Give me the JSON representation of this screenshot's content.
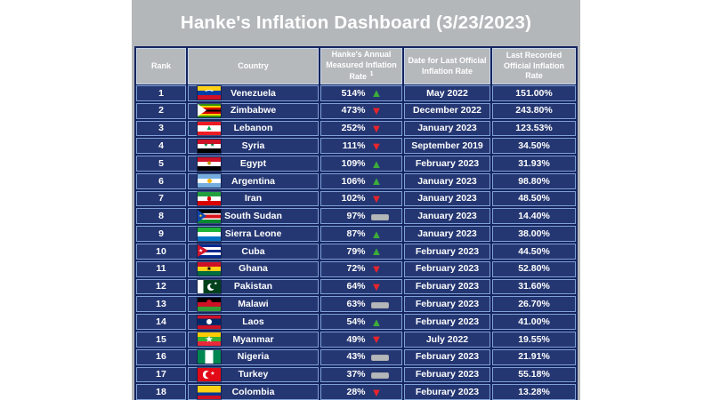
{
  "title": "Hanke's Inflation Dashboard (3/23/2023)",
  "colors": {
    "panel_bg": "#b4b7ba",
    "header_cell_bg": "#b6b9bc",
    "grid_dark": "#16255f",
    "cell_bg": "#253772",
    "cell_border": "#7fa1d8",
    "text": "#ffffff",
    "trend_up": "#3cac3a",
    "trend_down": "#e8242b",
    "trend_flat": "#b4b7ba"
  },
  "icons": {
    "trend_up_glyph": "▲",
    "trend_down_glyph": "▼",
    "trend_flat": "gray-bar"
  },
  "chart_data": {
    "type": "table",
    "title": "Hanke's Inflation Dashboard (3/23/2023)",
    "columns": [
      {
        "id": "rank",
        "label": "Rank"
      },
      {
        "id": "country",
        "label": "Country"
      },
      {
        "id": "hanke_rate",
        "label": "Hanke's Annual Measured Inflation Rate",
        "sup": "1"
      },
      {
        "id": "date",
        "label": "Date for Last Official Inflation Rate"
      },
      {
        "id": "official_rate",
        "label": "Last Recorded Official Inflation Rate"
      }
    ],
    "rows": [
      {
        "rank": "1",
        "country": "Venezuela",
        "hanke_rate": "514%",
        "trend": "up",
        "date": "May 2022",
        "official_rate": "151.00%",
        "flag": {
          "d": "h",
          "s": [
            [
              "#FCD116",
              33
            ],
            [
              "#003DA5",
              34
            ],
            [
              "#CE1126",
              33
            ]
          ],
          "o": [
            {
              "t": "arc",
              "c": "#FFFFFF",
              "x": 50,
              "y": 54,
              "w": 12,
              "h": 8
            }
          ]
        }
      },
      {
        "rank": "2",
        "country": "Zimbabwe",
        "hanke_rate": "473%",
        "trend": "down",
        "date": "December 2022",
        "official_rate": "243.80%",
        "flag": {
          "d": "h",
          "s": [
            [
              "#319209",
              14
            ],
            [
              "#FFD200",
              14
            ],
            [
              "#D40000",
              15
            ],
            [
              "#000000",
              14
            ],
            [
              "#D40000",
              15
            ],
            [
              "#FFD200",
              14
            ],
            [
              "#319209",
              14
            ]
          ],
          "o": [
            {
              "t": "tri",
              "c": "#FFFFFF",
              "w": 10
            }
          ]
        }
      },
      {
        "rank": "3",
        "country": "Lebanon",
        "hanke_rate": "252%",
        "trend": "down",
        "date": "January 2023",
        "official_rate": "123.53%",
        "flag": {
          "d": "h",
          "s": [
            [
              "#ED1C24",
              27
            ],
            [
              "#FFFFFF",
              46
            ],
            [
              "#ED1C24",
              27
            ]
          ],
          "o": [
            {
              "t": "txt",
              "g": "▲",
              "c": "#00A651",
              "x": 50,
              "y": 48,
              "s": 8
            }
          ]
        }
      },
      {
        "rank": "4",
        "country": "Syria",
        "hanke_rate": "111%",
        "trend": "down",
        "date": "September 2019",
        "official_rate": "34.50%",
        "flag": {
          "d": "h",
          "s": [
            [
              "#CE1126",
              33
            ],
            [
              "#FFFFFF",
              34
            ],
            [
              "#000000",
              33
            ]
          ],
          "o": [
            {
              "t": "txt",
              "g": "★",
              "c": "#007A3D",
              "x": 36,
              "y": 50,
              "s": 5
            },
            {
              "t": "txt",
              "g": "★",
              "c": "#007A3D",
              "x": 64,
              "y": 50,
              "s": 5
            }
          ]
        }
      },
      {
        "rank": "5",
        "country": "Egypt",
        "hanke_rate": "109%",
        "trend": "up",
        "date": "February 2023",
        "official_rate": "31.93%",
        "flag": {
          "d": "h",
          "s": [
            [
              "#CE1126",
              33
            ],
            [
              "#FFFFFF",
              34
            ],
            [
              "#000000",
              33
            ]
          ],
          "o": [
            {
              "t": "txt",
              "g": "◆",
              "c": "#C09300",
              "x": 50,
              "y": 50,
              "s": 6
            }
          ]
        }
      },
      {
        "rank": "6",
        "country": "Argentina",
        "hanke_rate": "106%",
        "trend": "up",
        "date": "January 2023",
        "official_rate": "98.80%",
        "flag": {
          "d": "h",
          "s": [
            [
              "#74ACDF",
              33
            ],
            [
              "#FFFFFF",
              34
            ],
            [
              "#74ACDF",
              33
            ]
          ],
          "o": [
            {
              "t": "dot",
              "c": "#F6B40E",
              "x": 50,
              "y": 50,
              "r": 2.5
            }
          ]
        }
      },
      {
        "rank": "7",
        "country": "Iran",
        "hanke_rate": "102%",
        "trend": "down",
        "date": "January 2023",
        "official_rate": "48.50%",
        "flag": {
          "d": "h",
          "s": [
            [
              "#239F40",
              33
            ],
            [
              "#FFFFFF",
              34
            ],
            [
              "#DA0000",
              33
            ]
          ],
          "o": [
            {
              "t": "dot",
              "c": "#DA0000",
              "x": 50,
              "y": 50,
              "r": 2.2
            }
          ]
        }
      },
      {
        "rank": "8",
        "country": "South Sudan",
        "hanke_rate": "97%",
        "trend": "flat",
        "date": "January 2023",
        "official_rate": "14.40%",
        "flag": {
          "d": "h",
          "s": [
            [
              "#000000",
              28
            ],
            [
              "#FFFFFF",
              8
            ],
            [
              "#DA121A",
              28
            ],
            [
              "#FFFFFF",
              8
            ],
            [
              "#078930",
              28
            ]
          ],
          "o": [
            {
              "t": "tri",
              "c": "#0F47AF",
              "w": 10
            },
            {
              "t": "txt",
              "g": "★",
              "c": "#FCDD09",
              "x": 13,
              "y": 50,
              "s": 4
            }
          ]
        }
      },
      {
        "rank": "9",
        "country": "Sierra Leone",
        "hanke_rate": "87%",
        "trend": "up",
        "date": "January 2023",
        "official_rate": "38.00%",
        "flag": {
          "d": "h",
          "s": [
            [
              "#1EB53A",
              33
            ],
            [
              "#FFFFFF",
              34
            ],
            [
              "#0072C6",
              33
            ]
          ]
        }
      },
      {
        "rank": "10",
        "country": "Cuba",
        "hanke_rate": "79%",
        "trend": "up",
        "date": "February 2023",
        "official_rate": "44.50%",
        "flag": {
          "d": "h",
          "s": [
            [
              "#002A8F",
              20
            ],
            [
              "#FFFFFF",
              20
            ],
            [
              "#002A8F",
              20
            ],
            [
              "#FFFFFF",
              20
            ],
            [
              "#002A8F",
              20
            ]
          ],
          "o": [
            {
              "t": "tri",
              "c": "#CF142B",
              "w": 12
            },
            {
              "t": "txt",
              "g": "★",
              "c": "#FFFFFF",
              "x": 14,
              "y": 50,
              "s": 5
            }
          ]
        }
      },
      {
        "rank": "11",
        "country": "Ghana",
        "hanke_rate": "72%",
        "trend": "down",
        "date": "February 2023",
        "official_rate": "52.80%",
        "flag": {
          "d": "h",
          "s": [
            [
              "#CE1126",
              33
            ],
            [
              "#FCD116",
              34
            ],
            [
              "#006B3F",
              33
            ]
          ],
          "o": [
            {
              "t": "txt",
              "g": "★",
              "c": "#000000",
              "x": 50,
              "y": 50,
              "s": 6
            }
          ]
        }
      },
      {
        "rank": "12",
        "country": "Pakistan",
        "hanke_rate": "64%",
        "trend": "down",
        "date": "February 2023",
        "official_rate": "31.60%",
        "flag": {
          "d": "v",
          "s": [
            [
              "#FFFFFF",
              25
            ],
            [
              "#01411C",
              75
            ]
          ],
          "o": [
            {
              "t": "dot",
              "c": "#FFFFFF",
              "x": 58,
              "y": 52,
              "r": 4
            },
            {
              "t": "dot",
              "c": "#01411C",
              "x": 68,
              "y": 47,
              "r": 3.4
            },
            {
              "t": "txt",
              "g": "★",
              "c": "#FFFFFF",
              "x": 78,
              "y": 28,
              "s": 4
            }
          ]
        }
      },
      {
        "rank": "13",
        "country": "Malawi",
        "hanke_rate": "63%",
        "trend": "flat",
        "date": "February 2023",
        "official_rate": "26.70%",
        "flag": {
          "d": "h",
          "s": [
            [
              "#000000",
              33
            ],
            [
              "#CE1126",
              34
            ],
            [
              "#339E35",
              33
            ]
          ],
          "o": [
            {
              "t": "dot",
              "c": "#CE1126",
              "x": 50,
              "y": 33,
              "r": 3
            }
          ]
        }
      },
      {
        "rank": "14",
        "country": "Laos",
        "hanke_rate": "54%",
        "trend": "up",
        "date": "February 2023",
        "official_rate": "41.00%",
        "flag": {
          "d": "h",
          "s": [
            [
              "#CE1126",
              25
            ],
            [
              "#002868",
              50
            ],
            [
              "#CE1126",
              25
            ]
          ],
          "o": [
            {
              "t": "dot",
              "c": "#FFFFFF",
              "x": 50,
              "y": 50,
              "r": 3
            }
          ]
        }
      },
      {
        "rank": "15",
        "country": "Myanmar",
        "hanke_rate": "49%",
        "trend": "down",
        "date": "July 2022",
        "official_rate": "19.55%",
        "flag": {
          "d": "h",
          "s": [
            [
              "#FECB00",
              33
            ],
            [
              "#34B233",
              34
            ],
            [
              "#EA2839",
              33
            ]
          ],
          "o": [
            {
              "t": "txt",
              "g": "★",
              "c": "#FFFFFF",
              "x": 50,
              "y": 48,
              "s": 9
            }
          ]
        }
      },
      {
        "rank": "16",
        "country": "Nigeria",
        "hanke_rate": "43%",
        "trend": "flat",
        "date": "February 2023",
        "official_rate": "21.91%",
        "flag": {
          "d": "v",
          "s": [
            [
              "#008751",
              33
            ],
            [
              "#FFFFFF",
              34
            ],
            [
              "#008751",
              33
            ]
          ]
        }
      },
      {
        "rank": "17",
        "country": "Turkey",
        "hanke_rate": "37%",
        "trend": "flat",
        "date": "February 2023",
        "official_rate": "55.18%",
        "flag": {
          "d": "h",
          "s": [
            [
              "#E30A17",
              100
            ]
          ],
          "o": [
            {
              "t": "dot",
              "c": "#FFFFFF",
              "x": 38,
              "y": 50,
              "r": 4.2
            },
            {
              "t": "dot",
              "c": "#E30A17",
              "x": 47,
              "y": 50,
              "r": 3.4
            },
            {
              "t": "txt",
              "g": "★",
              "c": "#FFFFFF",
              "x": 65,
              "y": 50,
              "s": 5
            }
          ]
        }
      },
      {
        "rank": "18",
        "country": "Colombia",
        "hanke_rate": "28%",
        "trend": "down",
        "date": "Feburary 2023",
        "official_rate": "13.28%",
        "flag": {
          "d": "h",
          "s": [
            [
              "#FCD116",
              50
            ],
            [
              "#003893",
              25
            ],
            [
              "#CE1126",
              25
            ]
          ]
        }
      }
    ]
  }
}
